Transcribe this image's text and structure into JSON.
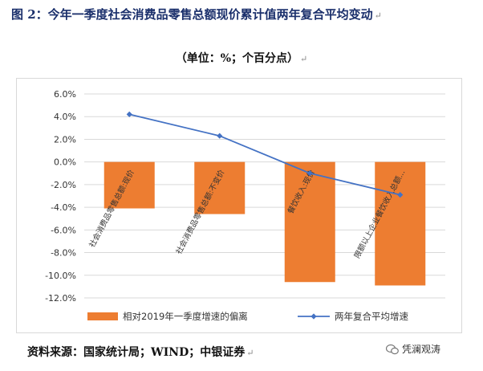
{
  "figure": {
    "title": "图 2：今年一季度社会消费品零售总额现价累计值两年复合平均变动",
    "subtitle": "（单位：%；个百分点）",
    "source": "资料来源：国家统计局；WIND；中银证券",
    "watermark": "凭澜观涛",
    "return_mark": "↵"
  },
  "chart_data": {
    "type": "bar",
    "categories": [
      "社会消费品零售总额:现价",
      "社会消费品零售总额:不变价",
      "餐饮收入:现价",
      "限额以上企业餐饮收入总额..."
    ],
    "ylim": [
      -12,
      6
    ],
    "yticks": [
      "6.0%",
      "4.0%",
      "2.0%",
      "0.0%",
      "-2.0%",
      "-4.0%",
      "-6.0%",
      "-8.0%",
      "-10.0%",
      "-12.0%"
    ],
    "ytick_values": [
      6,
      4,
      2,
      0,
      -2,
      -4,
      -6,
      -8,
      -10,
      -12
    ],
    "series": [
      {
        "name": "相对2019年一季度增速的偏离",
        "type": "bar",
        "color": "#ed7d31",
        "values": [
          -4.1,
          -4.6,
          -10.6,
          -10.9
        ]
      },
      {
        "name": "两年复合平均增速",
        "type": "line",
        "color": "#4472c4",
        "values": [
          4.2,
          2.3,
          -1.0,
          -2.9
        ]
      }
    ],
    "grid": true,
    "legend_position": "bottom"
  }
}
